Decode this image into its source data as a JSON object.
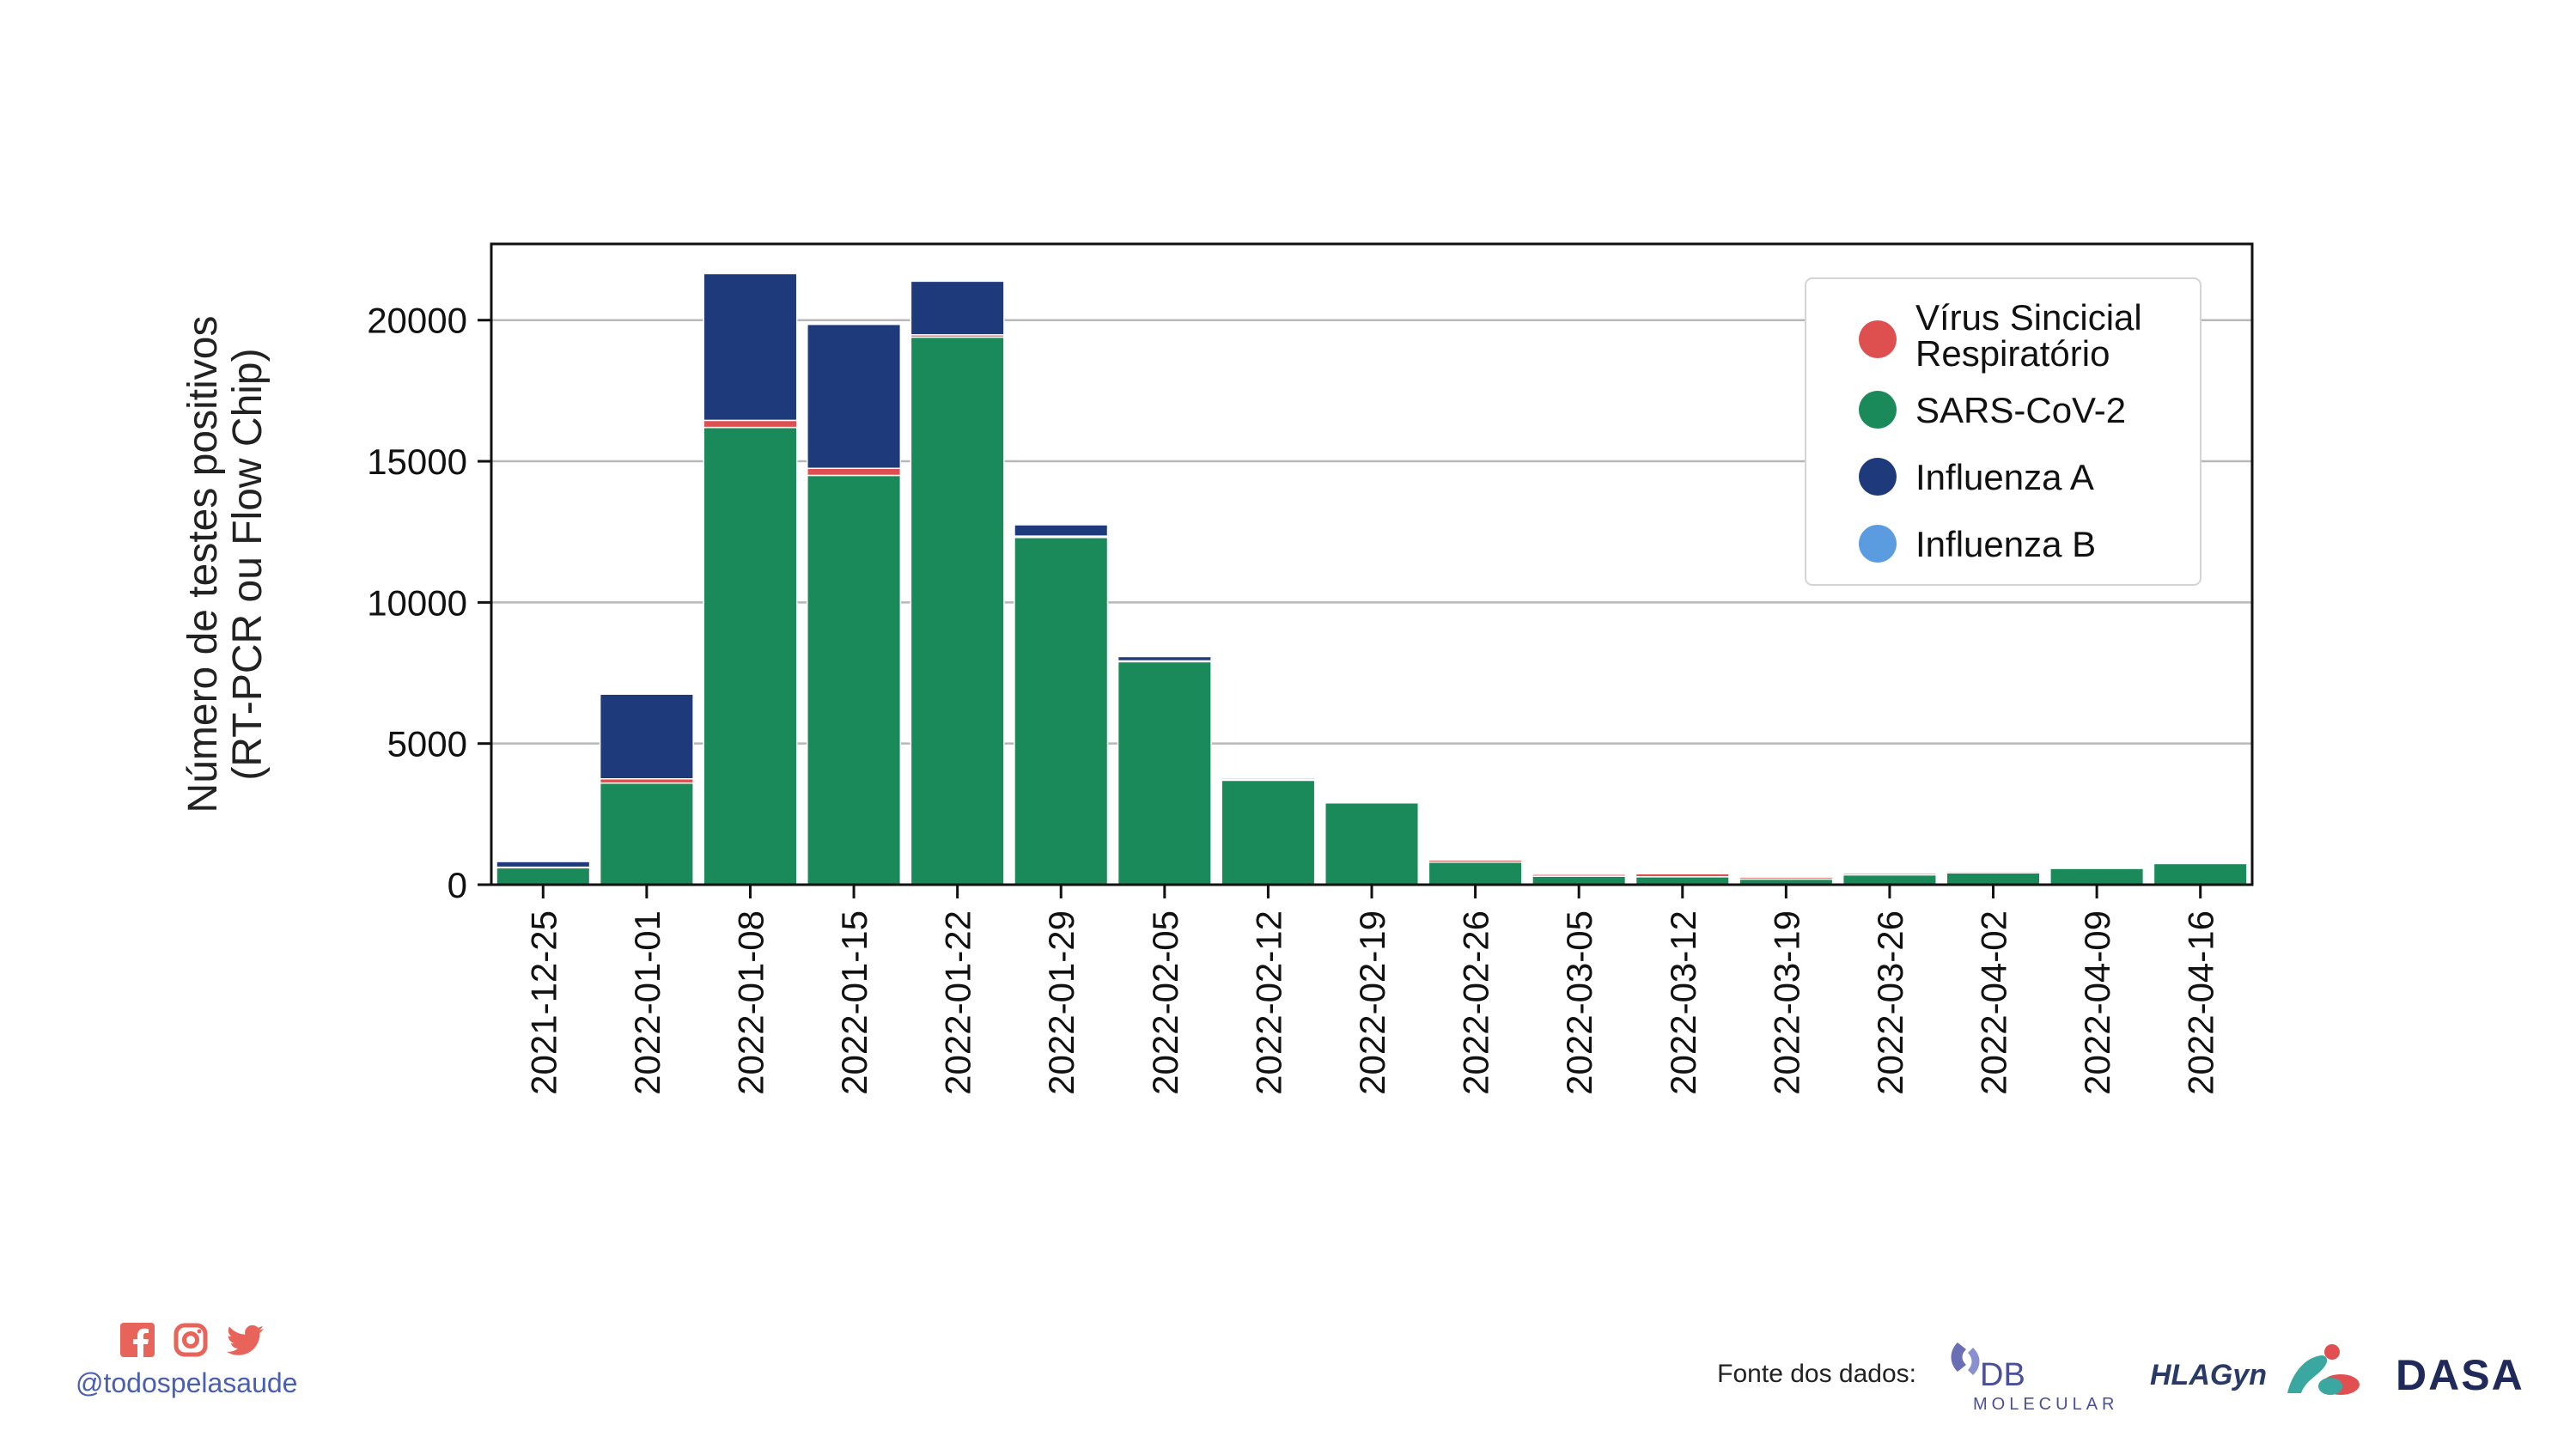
{
  "chart_data": {
    "type": "bar",
    "stacked": true,
    "ylabel_lines": [
      "Número de testes positivos",
      "(RT-PCR ou Flow Chip)"
    ],
    "xlabel": "",
    "ylim": [
      0,
      22700
    ],
    "yticks": [
      0,
      5000,
      10000,
      15000,
      20000
    ],
    "grid": "horizontal",
    "legend_position": "top-right",
    "categories": [
      "2021-12-25",
      "2022-01-01",
      "2022-01-08",
      "2022-01-15",
      "2022-01-22",
      "2022-01-29",
      "2022-02-05",
      "2022-02-12",
      "2022-02-19",
      "2022-02-26",
      "2022-03-05",
      "2022-03-12",
      "2022-03-19",
      "2022-03-26",
      "2022-04-02",
      "2022-04-09",
      "2022-04-16"
    ],
    "series": [
      {
        "name": "SARS-CoV-2",
        "color": "#1b8a5a",
        "values": [
          600,
          3600,
          16200,
          14500,
          19400,
          12300,
          7900,
          3700,
          2900,
          800,
          300,
          280,
          200,
          350,
          420,
          580,
          750
        ]
      },
      {
        "name": "Vírus Sincicial Respiratório",
        "color": "#de5050",
        "values": [
          20,
          150,
          250,
          250,
          80,
          50,
          30,
          30,
          30,
          80,
          80,
          120,
          80,
          70,
          60,
          30,
          20
        ]
      },
      {
        "name": "Influenza B",
        "color": "#5b9be0",
        "values": [
          0,
          0,
          0,
          0,
          0,
          0,
          0,
          0,
          0,
          0,
          0,
          0,
          0,
          0,
          0,
          0,
          0
        ]
      },
      {
        "name": "Influenza A",
        "color": "#1f3a7a",
        "values": [
          200,
          3000,
          5200,
          5100,
          1900,
          400,
          150,
          50,
          20,
          10,
          5,
          5,
          5,
          5,
          5,
          5,
          5
        ]
      }
    ],
    "legend_order": [
      "Vírus Sincicial Respiratório",
      "SARS-CoV-2",
      "Influenza A",
      "Influenza B"
    ],
    "legend_label_lines": {
      "Vírus Sincicial Respiratório": [
        "Vírus Sincicial",
        "Respiratório"
      ],
      "SARS-CoV-2": [
        "SARS-CoV-2"
      ],
      "Influenza A": [
        "Influenza A"
      ],
      "Influenza B": [
        "Influenza B"
      ]
    }
  },
  "footer": {
    "handle": "@todospelasaude",
    "source_label": "Fonte dos dados:",
    "social_icons": [
      "facebook-icon",
      "instagram-icon",
      "twitter-icon"
    ],
    "social_color": "#e8645a",
    "logos": [
      {
        "name": "db-molecular-logo",
        "line1": "DB",
        "line2": "MOLECULAR"
      },
      {
        "name": "hlagyn-logo",
        "text": "HLAGyn"
      },
      {
        "name": "dasa-logo",
        "text": "DASA"
      }
    ]
  }
}
